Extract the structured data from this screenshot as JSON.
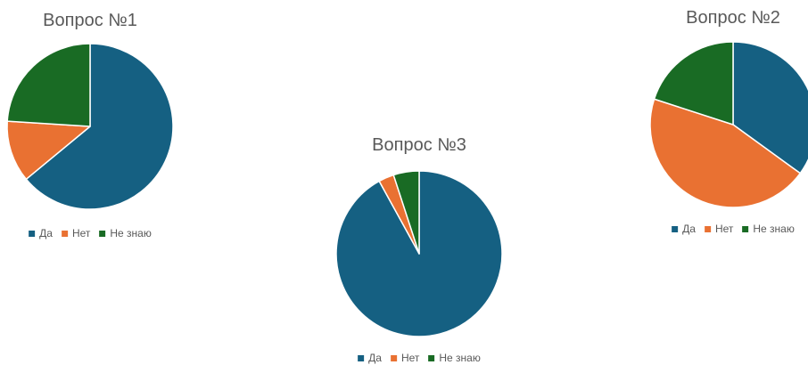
{
  "colors": {
    "da": "#156082",
    "net": "#E97132",
    "ne_znayu": "#196B24",
    "text": "#595959"
  },
  "chart_data": [
    {
      "type": "pie",
      "title": "Вопрос №1",
      "categories": [
        "Да",
        "Нет",
        "Не знаю"
      ],
      "values": [
        64,
        12,
        24
      ],
      "start_angle_deg": 0,
      "direction": "clockwise",
      "legend_position": "bottom"
    },
    {
      "type": "pie",
      "title": "Вопрос №2",
      "categories": [
        "Да",
        "Нет",
        "Не знаю"
      ],
      "values": [
        35,
        45,
        20
      ],
      "start_angle_deg": 0,
      "direction": "clockwise",
      "legend_position": "bottom"
    },
    {
      "type": "pie",
      "title": "Вопрос №3",
      "categories": [
        "Да",
        "Нет",
        "Не знаю"
      ],
      "values": [
        92,
        3,
        5
      ],
      "start_angle_deg": 0,
      "direction": "clockwise",
      "legend_position": "bottom"
    }
  ]
}
